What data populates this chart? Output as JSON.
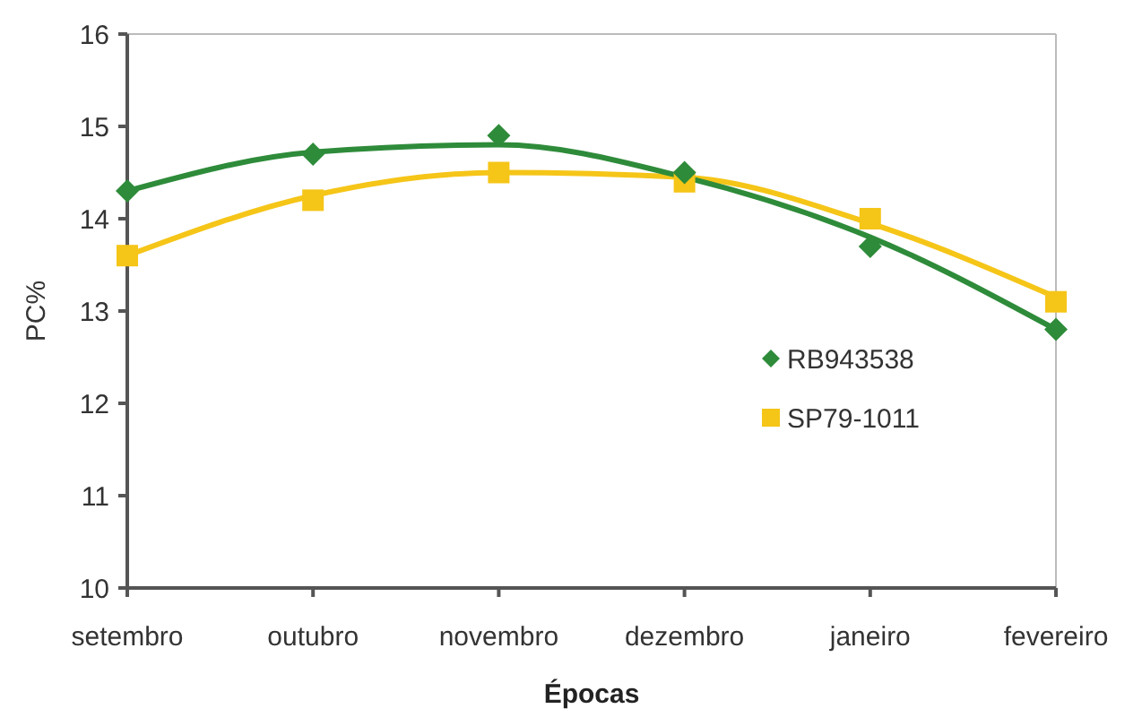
{
  "chart_data": {
    "type": "scatter",
    "xlabel": "Épocas",
    "ylabel": "PC%",
    "categories": [
      "setembro",
      "outubro",
      "novembro",
      "dezembro",
      "janeiro",
      "fevereiro"
    ],
    "series": [
      {
        "name": "RB943538",
        "color": "#2e8b3a",
        "marker": "diamond",
        "values": [
          14.3,
          14.7,
          14.9,
          14.5,
          13.7,
          12.8
        ]
      },
      {
        "name": "SP79-1011",
        "color": "#f5c518",
        "marker": "square",
        "values": [
          13.6,
          14.2,
          14.5,
          14.4,
          14.0,
          13.1
        ]
      },
      {
        "type": "line",
        "color": "#2e8b3a",
        "values": [
          14.3,
          14.72,
          14.8,
          14.45,
          13.8,
          12.8
        ]
      },
      {
        "type": "line",
        "color": "#f5c518",
        "values": [
          13.6,
          14.25,
          14.5,
          14.45,
          13.95,
          13.15
        ]
      }
    ],
    "ylim": [
      10,
      16
    ],
    "yticks": [
      10,
      11,
      12,
      13,
      14,
      15,
      16
    ],
    "grid": false,
    "legend": "right"
  }
}
